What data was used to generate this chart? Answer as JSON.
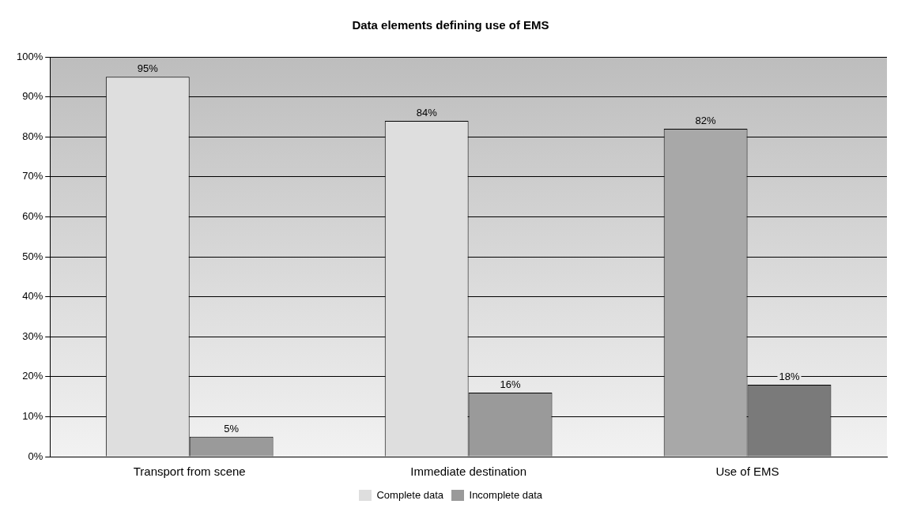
{
  "chart_data": {
    "type": "bar",
    "title": "Data elements defining use of EMS",
    "categories": [
      "Transport from scene",
      "Immediate destination",
      "Use of EMS"
    ],
    "series": [
      {
        "name": "Complete data",
        "color": "#dedede",
        "colors": [
          "#dedede",
          "#dedede",
          "#a8a8a8"
        ],
        "values": [
          95,
          84,
          82
        ],
        "value_labels": [
          "95%",
          "84%",
          "82%"
        ]
      },
      {
        "name": "Incomplete data",
        "color": "#9a9a9a",
        "colors": [
          "#9a9a9a",
          "#9a9a9a",
          "#7a7a7a"
        ],
        "values": [
          5,
          16,
          18
        ],
        "value_labels": [
          "5%",
          "16%",
          "18%"
        ]
      }
    ],
    "ylim": [
      0,
      100
    ],
    "yticks": [
      {
        "value": 0,
        "label": "0%"
      },
      {
        "value": 10,
        "label": "10%"
      },
      {
        "value": 20,
        "label": "20%"
      },
      {
        "value": 30,
        "label": "30%"
      },
      {
        "value": 40,
        "label": "40%"
      },
      {
        "value": 50,
        "label": "50%"
      },
      {
        "value": 60,
        "label": "60%"
      },
      {
        "value": 70,
        "label": "70%"
      },
      {
        "value": 80,
        "label": "80%"
      },
      {
        "value": 90,
        "label": "90%"
      },
      {
        "value": 100,
        "label": "100%"
      }
    ],
    "grid": "y",
    "legend": "bottom"
  }
}
